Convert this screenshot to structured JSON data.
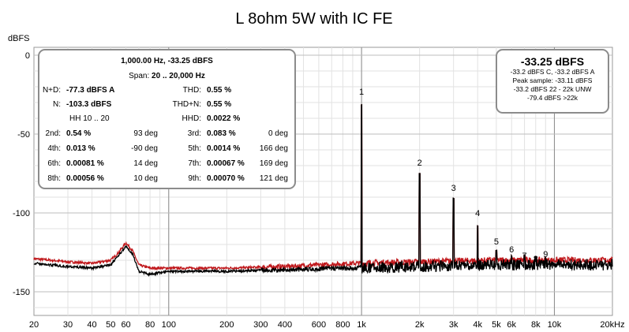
{
  "chart_data": {
    "type": "line",
    "title": "L 8ohm 5W with IC FE",
    "ylabel": "dBFS",
    "xscale": "log",
    "xlim": [
      20,
      20000
    ],
    "ylim": [
      -165,
      5
    ],
    "grid": true,
    "y_ticks": [
      {
        "value": 0,
        "label": "0"
      },
      {
        "value": -50,
        "label": "-50"
      },
      {
        "value": -100,
        "label": "-100"
      },
      {
        "value": -150,
        "label": "-150"
      }
    ],
    "x_ticks": [
      {
        "value": 20,
        "label": "20"
      },
      {
        "value": 30,
        "label": "30"
      },
      {
        "value": 40,
        "label": "40"
      },
      {
        "value": 50,
        "label": "50"
      },
      {
        "value": 60,
        "label": "60"
      },
      {
        "value": 80,
        "label": "80"
      },
      {
        "value": 100,
        "label": "100"
      },
      {
        "value": 200,
        "label": "200"
      },
      {
        "value": 300,
        "label": "300"
      },
      {
        "value": 400,
        "label": "400"
      },
      {
        "value": 600,
        "label": "600"
      },
      {
        "value": 800,
        "label": "800"
      },
      {
        "value": 1000,
        "label": "1k"
      },
      {
        "value": 2000,
        "label": "2k"
      },
      {
        "value": 3000,
        "label": "3k"
      },
      {
        "value": 4000,
        "label": "4k"
      },
      {
        "value": 5000,
        "label": "5k"
      },
      {
        "value": 6000,
        "label": "6k"
      },
      {
        "value": 8000,
        "label": "8k"
      },
      {
        "value": 10000,
        "label": "10k"
      },
      {
        "value": 20000,
        "label": "20kHz"
      }
    ],
    "major_x_grid": [
      100,
      1000,
      10000
    ],
    "series": [
      {
        "color": "#c0181c",
        "floor": [
          [
            20,
            -129
          ],
          [
            30,
            -131
          ],
          [
            40,
            -132
          ],
          [
            50,
            -130
          ],
          [
            55,
            -125
          ],
          [
            60,
            -119
          ],
          [
            65,
            -124
          ],
          [
            70,
            -133
          ],
          [
            80,
            -135
          ],
          [
            100,
            -135
          ],
          [
            200,
            -135
          ],
          [
            400,
            -134
          ],
          [
            900,
            -132
          ],
          [
            2000,
            -131
          ],
          [
            5000,
            -130
          ],
          [
            10000,
            -130
          ],
          [
            20000,
            -130
          ]
        ],
        "peaks": [
          [
            1000,
            -33.25
          ],
          [
            2000,
            -78.3
          ],
          [
            3000,
            -94
          ],
          [
            4000,
            -110
          ],
          [
            5000,
            -127
          ],
          [
            6000,
            -129
          ],
          [
            7000,
            -130
          ],
          [
            8000,
            -131
          ],
          [
            9000,
            -130
          ]
        ]
      },
      {
        "color": "#000000",
        "floor": [
          [
            20,
            -132
          ],
          [
            30,
            -134
          ],
          [
            40,
            -135
          ],
          [
            50,
            -133
          ],
          [
            55,
            -127
          ],
          [
            60,
            -121
          ],
          [
            65,
            -126
          ],
          [
            70,
            -137
          ],
          [
            80,
            -139
          ],
          [
            100,
            -137
          ],
          [
            200,
            -137
          ],
          [
            400,
            -136
          ],
          [
            900,
            -135
          ],
          [
            2000,
            -134
          ],
          [
            5000,
            -133
          ],
          [
            10000,
            -133
          ],
          [
            20000,
            -133
          ]
        ],
        "peaks": [
          [
            1000,
            -33.25
          ],
          [
            2000,
            -78.3
          ],
          [
            3000,
            -94
          ],
          [
            4000,
            -110
          ],
          [
            5000,
            -127
          ],
          [
            6000,
            -129
          ],
          [
            7000,
            -130
          ],
          [
            8000,
            -131
          ],
          [
            9000,
            -130
          ]
        ]
      }
    ],
    "harmonic_labels": [
      {
        "label": "1",
        "x": 1000,
        "y": -25
      },
      {
        "label": "2",
        "x": 2000,
        "y": -70
      },
      {
        "label": "3",
        "x": 3000,
        "y": -86
      },
      {
        "label": "4",
        "x": 4000,
        "y": -102
      },
      {
        "label": "5",
        "x": 5000,
        "y": -120
      },
      {
        "label": "6",
        "x": 6000,
        "y": -125
      },
      {
        "label": "7",
        "x": 7000,
        "y": -129
      },
      {
        "label": "8",
        "x": 8000,
        "y": -131
      },
      {
        "label": "9",
        "x": 9000,
        "y": -128
      }
    ]
  },
  "distortion_panel": {
    "fundamental": "1,000.00 Hz, -33.25 dBFS",
    "span_label": "Span:",
    "span_value": "20 .. 20,000 Hz",
    "nd_label": "N+D:",
    "nd_value": "-77.3 dBFS A",
    "n_label": "N:",
    "n_value": "-103.3 dBFS",
    "hh": "HH 10 .. 20",
    "thd_label": "THD:",
    "thd_value": "0.55 %",
    "thdn_label": "THD+N:",
    "thdn_value": "0.55 %",
    "hhd_label": "HHD:",
    "hhd_value": "0.0022 %",
    "harmonics": [
      {
        "l_label": "2nd:",
        "l_value": "0.54 %",
        "l_phase": "93 deg",
        "r_label": "3rd:",
        "r_value": "0.083 %",
        "r_phase": "0 deg"
      },
      {
        "l_label": "4th:",
        "l_value": "0.013 %",
        "l_phase": "-90 deg",
        "r_label": "5th:",
        "r_value": "0.0014 %",
        "r_phase": "166 deg"
      },
      {
        "l_label": "6th:",
        "l_value": "0.00081 %",
        "l_phase": "14 deg",
        "r_label": "7th:",
        "r_value": "0.00067 %",
        "r_phase": "169 deg"
      },
      {
        "l_label": "8th:",
        "l_value": "0.00056 %",
        "l_phase": "10 deg",
        "r_label": "9th:",
        "r_value": "0.00070 %",
        "r_phase": "121 deg"
      }
    ]
  },
  "level_panel": {
    "level": "-33.25 dBFS",
    "lines": [
      "-33.2 dBFS C, -33.2 dBFS A",
      "Peak sample: -33.11 dBFS",
      "-33.2 dBFS 22 - 22k UNW",
      "-79.4 dBFS >22k"
    ]
  }
}
